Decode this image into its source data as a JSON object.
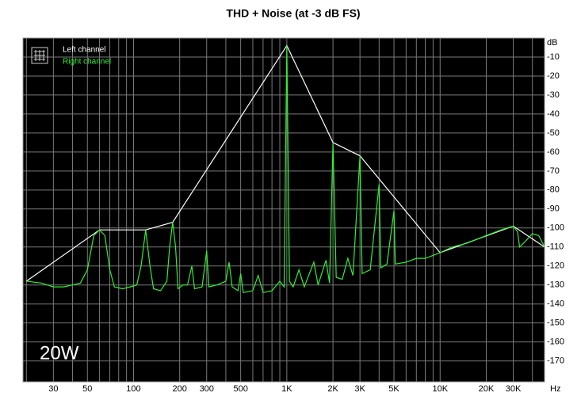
{
  "chart_data": {
    "type": "line",
    "title": "THD + Noise (at -3 dB FS)",
    "xlabel": "Hz",
    "ylabel": "dB",
    "annotation": "20W",
    "xscale": "log",
    "grid": true,
    "legend": "upper left",
    "xlim": [
      19,
      48000
    ],
    "ylim": [
      -181,
      0
    ],
    "xticks": [
      30,
      50,
      100,
      200,
      300,
      500,
      {
        "value": 1000,
        "label": "1K"
      },
      {
        "value": 2000,
        "label": "2K"
      },
      {
        "value": 3000,
        "label": "3K"
      },
      {
        "value": 5000,
        "label": "5K"
      },
      {
        "value": 10000,
        "label": "10K"
      },
      {
        "value": 20000,
        "label": "20K"
      },
      {
        "value": 30000,
        "label": "30K"
      }
    ],
    "xminor": [
      20,
      40,
      60,
      70,
      80,
      90,
      400,
      600,
      700,
      800,
      900,
      4000,
      6000,
      7000,
      8000,
      9000,
      40000
    ],
    "yticks": [
      -10,
      -20,
      -30,
      -40,
      -50,
      -60,
      -70,
      -80,
      -90,
      -100,
      -110,
      -120,
      -130,
      -140,
      -150,
      -160,
      -170
    ],
    "series": [
      {
        "name": "Left channel",
        "color": "#ffffff",
        "x": [
          20,
          60,
          120,
          180,
          1000,
          2000,
          3000,
          10000,
          30000,
          48000
        ],
        "values": [
          -128,
          -101,
          -101,
          -97,
          -4,
          -55,
          -62,
          -113,
          -99,
          -110
        ]
      },
      {
        "name": "Right channel",
        "color": "#33ee33",
        "x": [
          20,
          25,
          30,
          35,
          40,
          45,
          50,
          55,
          60,
          65,
          70,
          75,
          85,
          95,
          105,
          112,
          120,
          128,
          135,
          150,
          165,
          172,
          180,
          188,
          195,
          210,
          225,
          240,
          250,
          280,
          300,
          310,
          350,
          400,
          420,
          440,
          480,
          500,
          520,
          600,
          650,
          700,
          800,
          900,
          960,
          1000,
          1040,
          1100,
          1200,
          1300,
          1500,
          1600,
          1800,
          1900,
          2000,
          2100,
          2300,
          2500,
          2700,
          3000,
          3100,
          3500,
          4000,
          4100,
          4500,
          5000,
          5100,
          6000,
          7000,
          8000,
          10000,
          12000,
          15000,
          20000,
          25000,
          30000,
          32000,
          33000,
          36000,
          40000,
          44000,
          48000
        ],
        "values": [
          -128,
          -129,
          -131,
          -131,
          -130,
          -129,
          -122,
          -104,
          -101,
          -104,
          -122,
          -131,
          -132,
          -131,
          -130,
          -120,
          -101,
          -120,
          -132,
          -133,
          -128,
          -110,
          -97,
          -110,
          -132,
          -130,
          -130,
          -120,
          -132,
          -131,
          -112,
          -131,
          -130,
          -128,
          -118,
          -131,
          -133,
          -124,
          -134,
          -133,
          -125,
          -134,
          -133,
          -128,
          -131,
          -4,
          -128,
          -131,
          -122,
          -131,
          -118,
          -130,
          -117,
          -129,
          -55,
          -126,
          -127,
          -116,
          -125,
          -62,
          -124,
          -122,
          -77,
          -121,
          -119,
          -91,
          -119,
          -118,
          -116,
          -116,
          -113,
          -110,
          -108,
          -104,
          -101,
          -99,
          -102,
          -110,
          -107,
          -103,
          -104,
          -110
        ]
      }
    ]
  }
}
